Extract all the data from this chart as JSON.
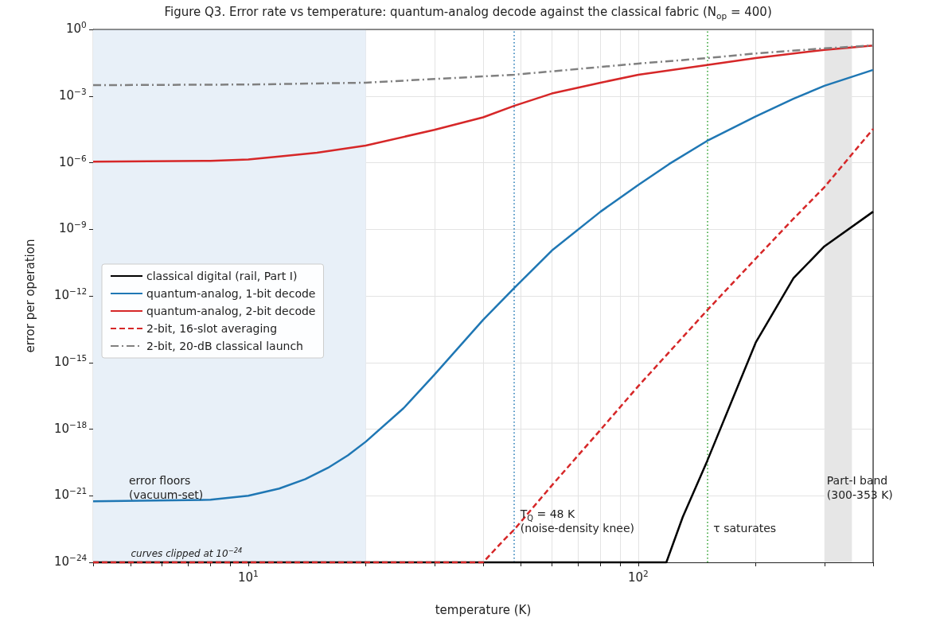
{
  "chart_data": {
    "type": "line",
    "title": "Figure Q3. Error rate vs temperature: quantum-analog decode against the classical fabric (N$_{op}$ = 400)",
    "xlabel": "temperature (K)",
    "ylabel": "error per operation",
    "log": "xy",
    "grid": true,
    "legend": "left",
    "xlim": [
      4,
      400
    ],
    "xticks": [
      {
        "value": 4,
        "label": null
      },
      {
        "value": 5,
        "label": null
      },
      {
        "value": 6,
        "label": null
      },
      {
        "value": 7,
        "label": null
      },
      {
        "value": 8,
        "label": null
      },
      {
        "value": 9,
        "label": null
      },
      {
        "value": 10,
        "label": "10$^{1}$"
      },
      {
        "value": 20,
        "label": null
      },
      {
        "value": 30,
        "label": null
      },
      {
        "value": 40,
        "label": null
      },
      {
        "value": 50,
        "label": null
      },
      {
        "value": 60,
        "label": null
      },
      {
        "value": 70,
        "label": null
      },
      {
        "value": 80,
        "label": null
      },
      {
        "value": 90,
        "label": null
      },
      {
        "value": 100,
        "label": "10$^{2}$"
      },
      {
        "value": 200,
        "label": null
      },
      {
        "value": 300,
        "label": null
      },
      {
        "value": 400,
        "label": null
      }
    ],
    "ylim": [
      1e-24,
      1
    ],
    "yticks": [
      {
        "value": 1e-24,
        "label": "10$^{−24}$"
      },
      {
        "value": 1e-21,
        "label": "10$^{−21}$"
      },
      {
        "value": 1e-18,
        "label": "10$^{−18}$"
      },
      {
        "value": 1e-15,
        "label": "10$^{−15}$"
      },
      {
        "value": 1e-12,
        "label": "10$^{−12}$"
      },
      {
        "value": 1e-09,
        "label": "10$^{−9}$"
      },
      {
        "value": 1e-06,
        "label": "10$^{−6}$"
      },
      {
        "value": 0.001,
        "label": "10$^{−3}$"
      },
      {
        "value": 1,
        "label": "10$^{0}$"
      }
    ],
    "series": [
      {
        "name": "classical digital (rail, Part I)",
        "color": "#000000",
        "line_style": "solid",
        "x": [
          4,
          118,
          130,
          150,
          200,
          250,
          300,
          400
        ],
        "values": [
          1e-24,
          1e-24,
          1.1e-22,
          3.5e-20,
          7.9e-15,
          6.3e-12,
          1.7e-10,
          6.2e-09
        ]
      },
      {
        "name": "quantum-analog, 1-bit decode",
        "color": "#1f77b4",
        "line_style": "solid",
        "x": [
          4,
          8,
          10,
          12,
          14,
          16,
          18,
          20,
          25,
          30,
          40,
          48,
          60,
          80,
          100,
          120,
          150,
          200,
          250,
          300,
          400
        ],
        "values": [
          5.6e-22,
          6.6e-22,
          1e-21,
          2.1e-21,
          5.6e-21,
          1.8e-20,
          6.6e-20,
          2.7e-19,
          8.7e-18,
          2.8e-16,
          8.3e-14,
          2.2e-12,
          1.1e-10,
          6.2e-09,
          1e-07,
          8.7e-07,
          9.5e-06,
          0.00012,
          0.00076,
          0.0029,
          0.015
        ]
      },
      {
        "name": "quantum-analog, 2-bit decode",
        "color": "#d62728",
        "line_style": "solid",
        "x": [
          4,
          8,
          10,
          12,
          15,
          20,
          30,
          40,
          48,
          60,
          80,
          100,
          150,
          200,
          300,
          400
        ],
        "values": [
          1.1e-06,
          1.2e-06,
          1.4e-06,
          1.9e-06,
          2.8e-06,
          5.9e-06,
          3e-05,
          0.00011,
          0.00036,
          0.0013,
          0.004,
          0.0091,
          0.025,
          0.051,
          0.12,
          0.19
        ]
      },
      {
        "name": "2-bit, 16-slot averaging",
        "color": "#d62728",
        "line_style": "dashed",
        "x": [
          4,
          40,
          45,
          48,
          60,
          80,
          100,
          150,
          200,
          250,
          300,
          400
        ],
        "values": [
          1e-24,
          1e-24,
          9.3e-24,
          2.9e-23,
          2.9e-21,
          9.3e-19,
          8.7e-17,
          2.2e-13,
          4.8e-11,
          3e-09,
          7.9e-08,
          3.3e-05
        ]
      },
      {
        "name": "2-bit, 20-dB classical launch",
        "color": "#808080",
        "line_style": "dashdot",
        "x": [
          4,
          10,
          20,
          48,
          100,
          150,
          200,
          300,
          400
        ],
        "values": [
          0.0031,
          0.0033,
          0.004,
          0.0091,
          0.029,
          0.051,
          0.083,
          0.14,
          0.19
        ]
      }
    ],
    "bands": [
      {
        "axis": "x",
        "from": 4,
        "to": 20,
        "label": "error floors\n(vacuum-set)",
        "color": "#e8f0f8"
      },
      {
        "axis": "x",
        "from": 300,
        "to": 353,
        "label": "Part-I band\n(300-353 K)",
        "color": "#e6e6e6"
      }
    ],
    "ref_lines": [
      {
        "axis": "x",
        "value": 48,
        "label": "T$_{Q}$ = 48 K\n(noise-density knee)",
        "color": "#1f77b4",
        "line_style": "dotted"
      },
      {
        "axis": "x",
        "value": 150,
        "label": "τ saturates",
        "color": "#2ca02c",
        "line_style": "dotted"
      }
    ],
    "annotations": [
      {
        "text": "curves clipped at 10$^{−24}$",
        "x": 5,
        "y": 1e-24
      }
    ]
  }
}
